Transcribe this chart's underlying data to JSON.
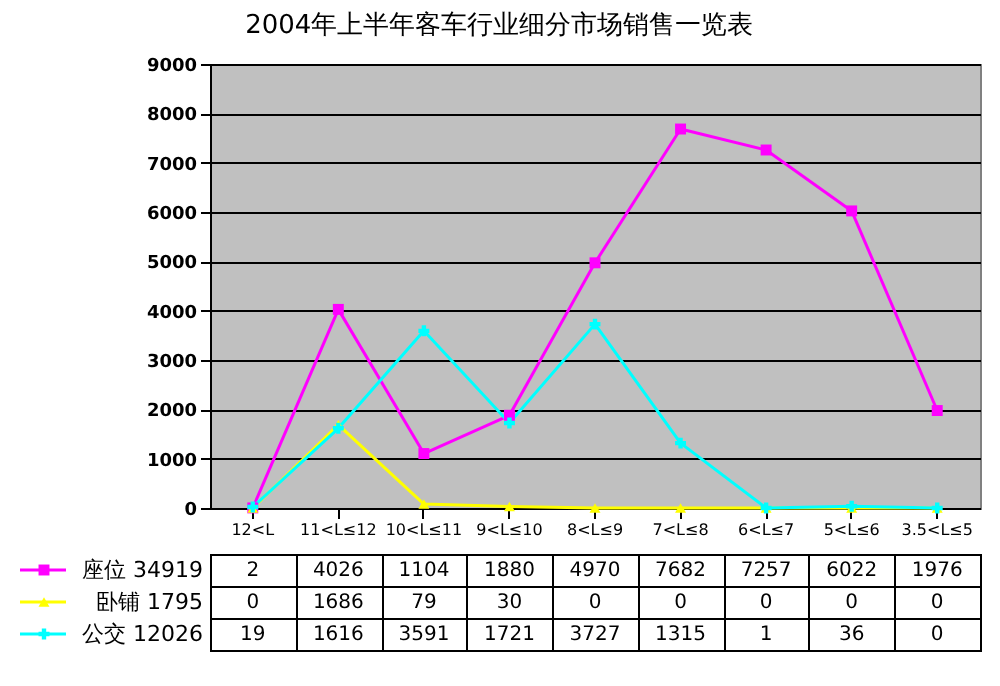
{
  "chart_data": {
    "type": "line",
    "title": "2004年上半年客车行业细分市场销售一览表",
    "categories": [
      "12<L",
      "11<L≤12",
      "10<L≤11",
      "9<L≤10",
      "8<L≤9",
      "7<L≤8",
      "6<L≤7",
      "5<L≤6",
      "3.5<L≤5"
    ],
    "series": [
      {
        "name": "座位 34919",
        "color": "#ff00ff",
        "marker": "square",
        "values": [
          2,
          4026,
          1104,
          1880,
          4970,
          7682,
          7257,
          6022,
          1976
        ]
      },
      {
        "name": "卧铺 1795",
        "color": "#ffff00",
        "marker": "triangle",
        "values": [
          0,
          1686,
          79,
          30,
          0,
          0,
          0,
          0,
          0
        ]
      },
      {
        "name": "公交 12026",
        "color": "#00ffff",
        "marker": "cross",
        "values": [
          19,
          1616,
          3591,
          1721,
          3727,
          1315,
          1,
          36,
          0
        ]
      }
    ],
    "ylim": [
      0,
      9000
    ],
    "yticks": [
      0,
      1000,
      2000,
      3000,
      4000,
      5000,
      6000,
      7000,
      8000,
      9000
    ],
    "grid": "y",
    "legend": "bottom",
    "data_labels": true
  }
}
